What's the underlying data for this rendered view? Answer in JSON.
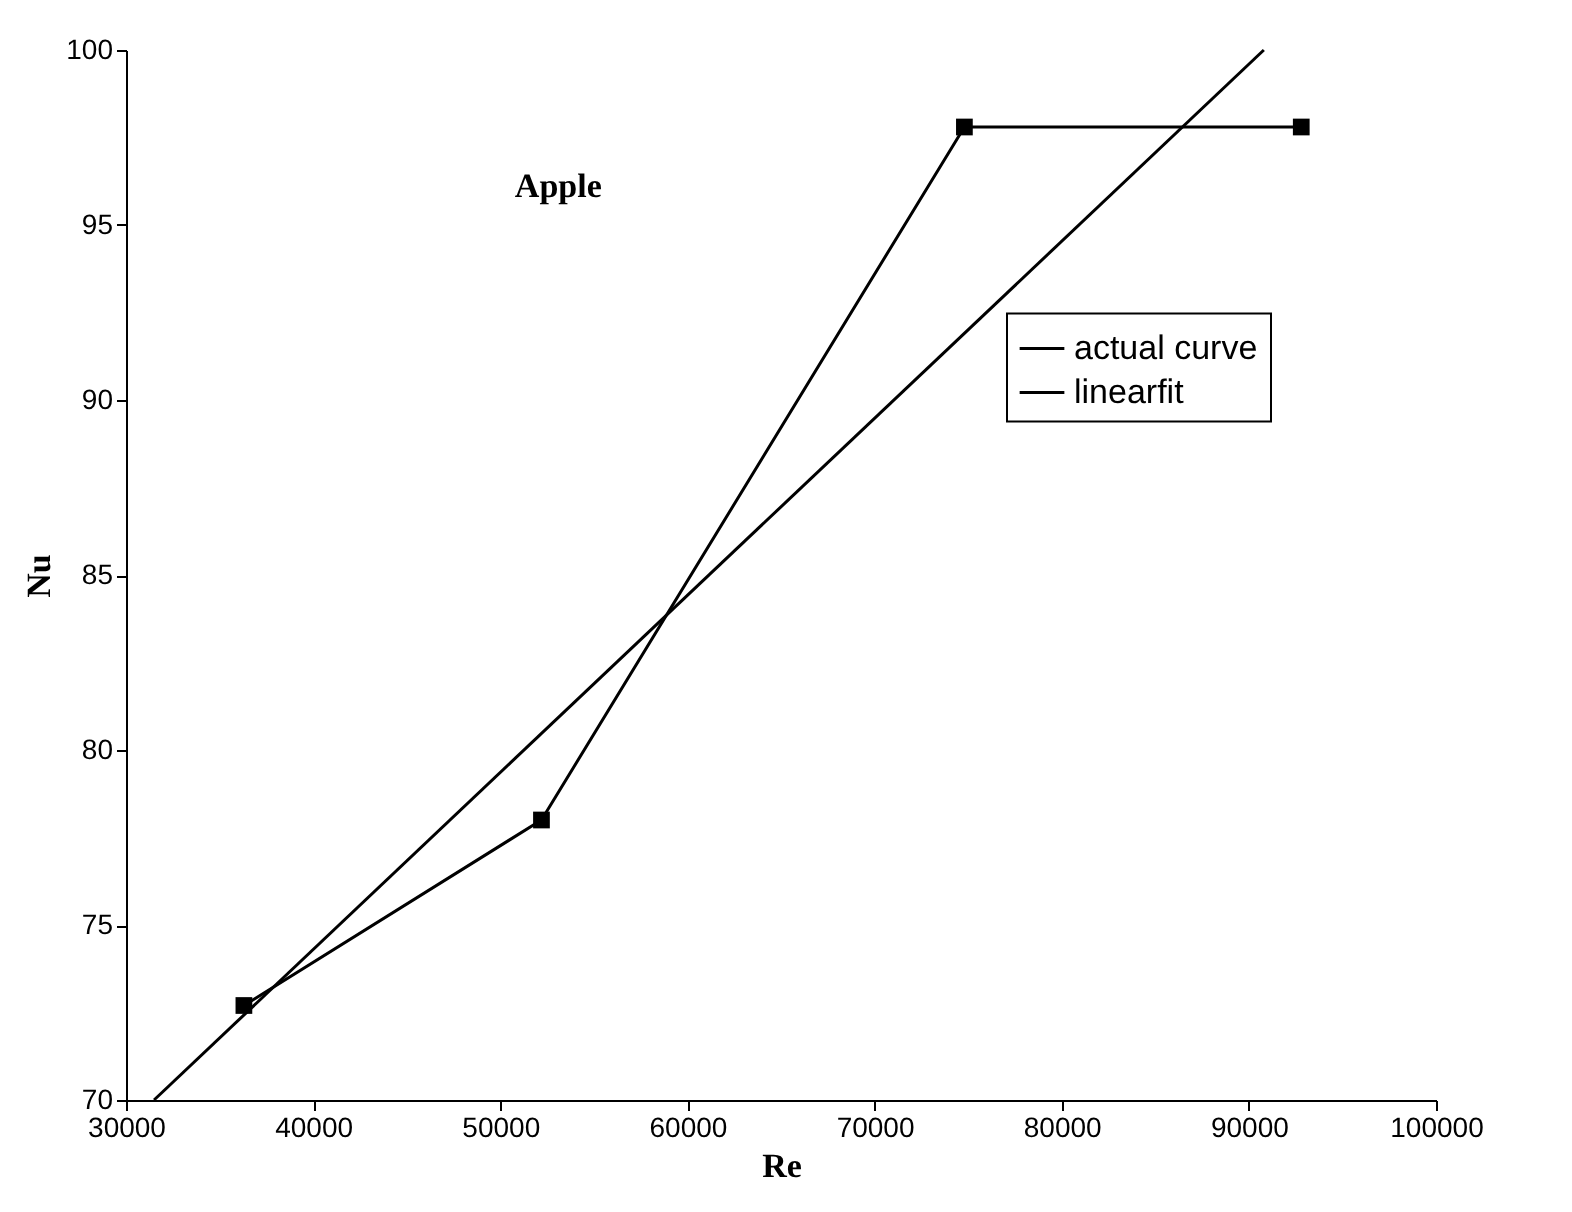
{
  "chart_data": {
    "type": "line",
    "title": "Apple",
    "xlabel": "Re",
    "ylabel": "Nu",
    "xlim": [
      30000,
      100000
    ],
    "xticks": [
      30000,
      40000,
      50000,
      60000,
      70000,
      80000,
      90000,
      100000
    ],
    "ylim": [
      70,
      100
    ],
    "yticks": [
      70,
      75,
      80,
      85,
      90,
      95,
      100
    ],
    "series": [
      {
        "name": "actual curve",
        "color": "#000000",
        "marker": "square",
        "x": [
          36300,
          52200,
          74800,
          92800
        ],
        "values": [
          72.7,
          78.0,
          97.8,
          97.8
        ]
      },
      {
        "name": "linearfit",
        "color": "#000000",
        "marker": "none",
        "x": [
          31500,
          90800
        ],
        "values": [
          70,
          100
        ]
      }
    ],
    "legend": "top right",
    "grid": false,
    "line_style": "solid"
  }
}
